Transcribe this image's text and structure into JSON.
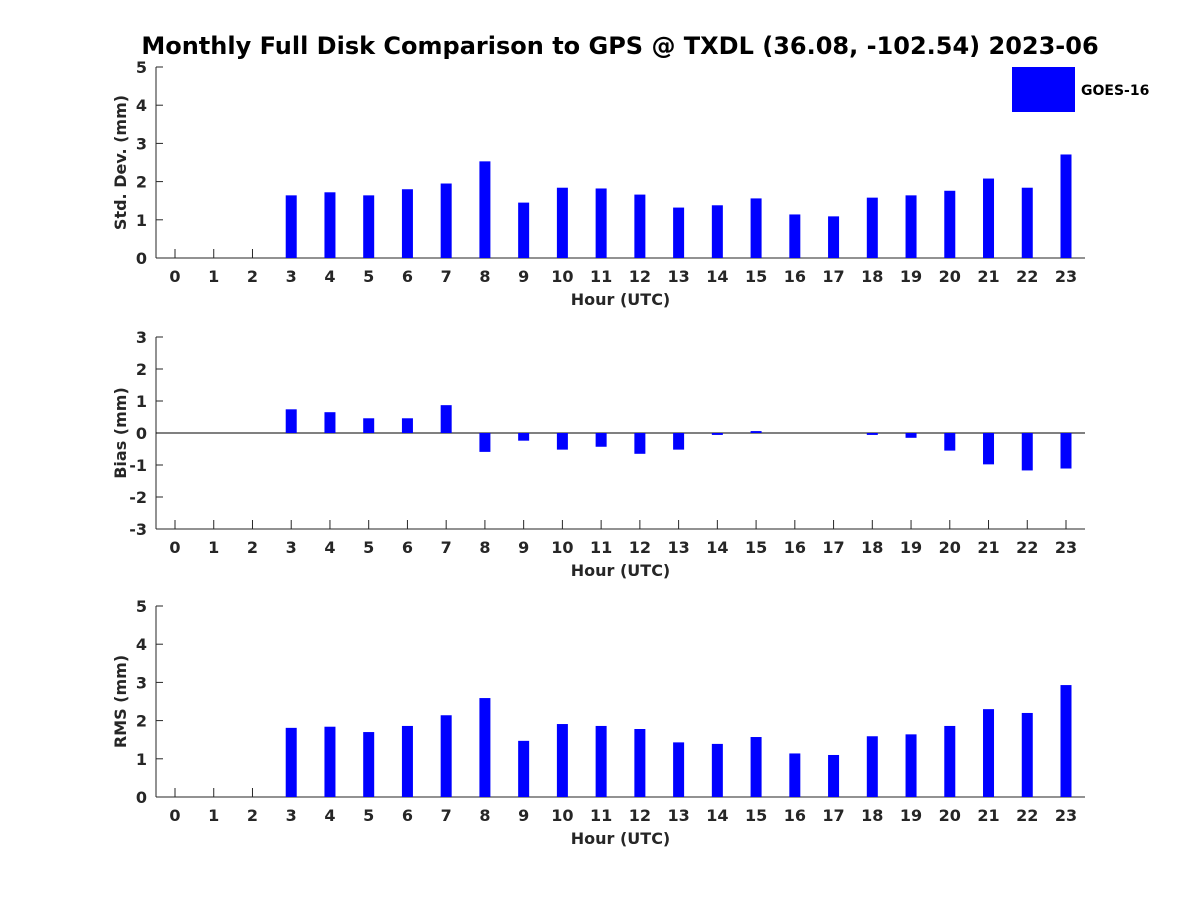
{
  "title": "Monthly Full Disk Comparison to GPS @ TXDL (36.08, -102.54) 2023-06",
  "legend": {
    "label": "GOES-16",
    "placement": "top-right"
  },
  "colors": {
    "bar": "#0000ff",
    "axis": "#262626"
  },
  "chart_data": [
    {
      "type": "bar",
      "title": "Monthly Full Disk Comparison to GPS @ TXDL (36.08, -102.54) 2023-06",
      "xlabel": "Hour (UTC)",
      "ylabel": "Std. Dev. (mm)",
      "ylim": [
        0,
        5
      ],
      "yticks": [
        0,
        1,
        2,
        3,
        4,
        5
      ],
      "categories": [
        "0",
        "1",
        "2",
        "3",
        "4",
        "5",
        "6",
        "7",
        "8",
        "9",
        "10",
        "11",
        "12",
        "13",
        "14",
        "15",
        "16",
        "17",
        "18",
        "19",
        "20",
        "21",
        "22",
        "23"
      ],
      "series": [
        {
          "name": "GOES-16",
          "values": [
            null,
            null,
            null,
            1.64,
            1.72,
            1.64,
            1.8,
            1.95,
            2.53,
            1.45,
            1.84,
            1.82,
            1.66,
            1.32,
            1.38,
            1.56,
            1.14,
            1.09,
            1.58,
            1.64,
            1.76,
            2.08,
            1.84,
            2.71
          ]
        }
      ],
      "grid": false
    },
    {
      "type": "bar",
      "xlabel": "Hour (UTC)",
      "ylabel": "Bias (mm)",
      "ylim": [
        -3,
        3
      ],
      "yticks": [
        -3,
        -2,
        -1,
        0,
        1,
        2,
        3
      ],
      "categories": [
        "0",
        "1",
        "2",
        "3",
        "4",
        "5",
        "6",
        "7",
        "8",
        "9",
        "10",
        "11",
        "12",
        "13",
        "14",
        "15",
        "16",
        "17",
        "18",
        "19",
        "20",
        "21",
        "22",
        "23"
      ],
      "series": [
        {
          "name": "GOES-16",
          "values": [
            null,
            null,
            null,
            0.74,
            0.65,
            0.46,
            0.46,
            0.87,
            -0.59,
            -0.24,
            -0.52,
            -0.43,
            -0.65,
            -0.52,
            -0.06,
            0.06,
            0.0,
            0.0,
            -0.06,
            -0.15,
            -0.55,
            -0.98,
            -1.17,
            -1.11
          ]
        }
      ],
      "zero_line": true,
      "grid": false
    },
    {
      "type": "bar",
      "xlabel": "Hour (UTC)",
      "ylabel": "RMS (mm)",
      "ylim": [
        0,
        5
      ],
      "yticks": [
        0,
        1,
        2,
        3,
        4,
        5
      ],
      "categories": [
        "0",
        "1",
        "2",
        "3",
        "4",
        "5",
        "6",
        "7",
        "8",
        "9",
        "10",
        "11",
        "12",
        "13",
        "14",
        "15",
        "16",
        "17",
        "18",
        "19",
        "20",
        "21",
        "22",
        "23"
      ],
      "series": [
        {
          "name": "GOES-16",
          "values": [
            null,
            null,
            null,
            1.81,
            1.84,
            1.7,
            1.86,
            2.14,
            2.59,
            1.47,
            1.91,
            1.86,
            1.78,
            1.43,
            1.39,
            1.57,
            1.14,
            1.1,
            1.59,
            1.64,
            1.86,
            2.3,
            2.2,
            2.93
          ]
        }
      ],
      "grid": false
    }
  ]
}
